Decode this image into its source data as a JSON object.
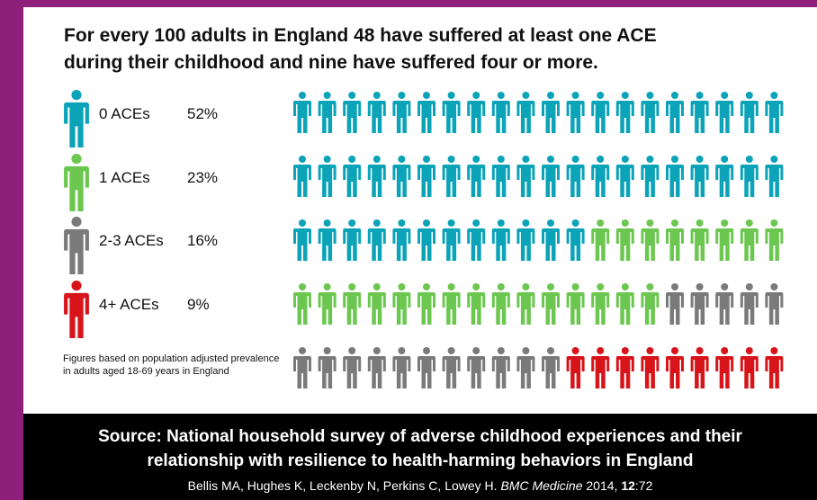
{
  "title_line1": "For every 100 adults in England 48 have suffered at least one ACE",
  "title_line2": "during their childhood and nine have suffered four or more.",
  "footnote": "Figures based on population adjusted prevalence in adults aged 18-69 years in England",
  "source": {
    "line1": "Source: National household survey of adverse childhood experiences and their",
    "line2": "relationship with resilience to health-harming behaviors in England",
    "authors": "Bellis MA, Hughes K, Leckenby N, Perkins C, Lowey H. ",
    "journal": "BMC Medicine",
    "year": " 2014, ",
    "volume": "12",
    "pages": ":72"
  },
  "colors": {
    "background": "#8e1f7a",
    "ace0": "#0aa3b8",
    "ace1": "#6cc750",
    "ace23": "#7a7a7a",
    "ace4plus": "#d7141a"
  },
  "icon": "person-icon",
  "chart_data": {
    "type": "pictograph",
    "total": 100,
    "per_row": 20,
    "series": [
      {
        "name": "0 ACEs",
        "pct_label": "52%",
        "value": 52,
        "color": "#0aa3b8"
      },
      {
        "name": "1 ACEs",
        "pct_label": "23%",
        "value": 23,
        "color": "#6cc750"
      },
      {
        "name": "2-3 ACEs",
        "pct_label": "16%",
        "value": 16,
        "color": "#7a7a7a"
      },
      {
        "name": "4+ ACEs",
        "pct_label": "9%",
        "value": 9,
        "color": "#d7141a"
      }
    ]
  }
}
